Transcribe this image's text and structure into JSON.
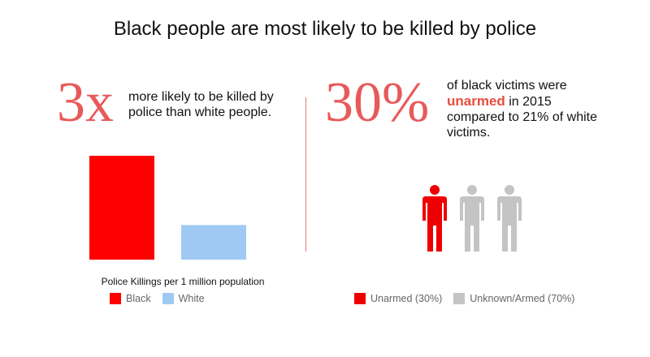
{
  "title": "Black people are most likely to be killed by police",
  "left_panel": {
    "big_stat": "3x",
    "stat_text": "more likely to be killed by police than white people.",
    "caption": "Police Killings per 1 million population",
    "legend": [
      {
        "label": "Black",
        "color": "#ff0000"
      },
      {
        "label": "White",
        "color": "#9fc9f2"
      }
    ]
  },
  "right_panel": {
    "big_stat": "30%",
    "stat_text_before": "of black victims were",
    "stat_highlight": "unarmed",
    "stat_text_after": " in 2015 compared to 21% of white victims.",
    "legend": [
      {
        "label": "Unarmed (30%)",
        "color": "#ee0000"
      },
      {
        "label": "Unknown/Armed (70%)",
        "color": "#c4c4c4"
      }
    ]
  },
  "colors": {
    "accent": "#e85a5a",
    "black_bar": "#ff0000",
    "white_bar": "#9fc9f2",
    "unarmed": "#ee0000",
    "armed": "#c4c4c4"
  },
  "chart_data": [
    {
      "type": "bar",
      "categories": [
        "Black",
        "White"
      ],
      "values": [
        3,
        1
      ],
      "title": "",
      "xlabel": "Police Killings per 1 million population",
      "ylabel": "",
      "grid": false,
      "legend": "bottom"
    },
    {
      "type": "pictogram",
      "categories": [
        "Unarmed (30%)",
        "Unknown/Armed (70%)"
      ],
      "values": [
        30,
        70
      ],
      "icons": [
        "unarmed",
        "armed",
        "armed"
      ]
    }
  ]
}
